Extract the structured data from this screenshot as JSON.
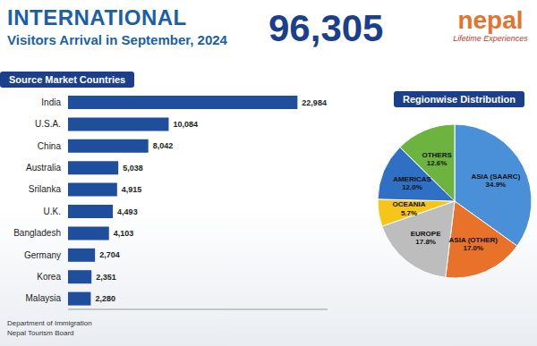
{
  "header": {
    "title": "INTERNATIONAL",
    "subtitle": "Visitors Arrival in September, 2024",
    "total": "96,305",
    "logo": "nepal",
    "tagline": "Lifetime Experiences"
  },
  "source": [
    "Department of Immigration",
    "Nepal Tourism Board"
  ],
  "chart_data": [
    {
      "type": "bar",
      "title": "Source Market Countries",
      "orientation": "horizontal",
      "categories": [
        "India",
        "U.S.A.",
        "China",
        "Australia",
        "Srilanka",
        "U.K.",
        "Bangladesh",
        "Germany",
        "Korea",
        "Malaysia"
      ],
      "values": [
        22984,
        10084,
        8042,
        5038,
        4915,
        4493,
        4103,
        2704,
        2351,
        2280
      ],
      "value_labels": [
        "22,984",
        "10,084",
        "8,042",
        "5,038",
        "4,915",
        "4,493",
        "4,103",
        "2,704",
        "2,351",
        "2,280"
      ],
      "xlim": [
        0,
        26000
      ],
      "tick_labels": "y",
      "data_labels": true,
      "color": "#1f4e9c"
    },
    {
      "type": "pie",
      "title": "Regionwise Distribution",
      "categories": [
        "ASIA (SAARC)",
        "ASIA (OTHER)",
        "EUROPE",
        "OCEANIA",
        "AMERICAS",
        "OTHERS"
      ],
      "values": [
        34.9,
        17.0,
        17.8,
        5.7,
        12.0,
        12.6
      ],
      "value_labels": [
        "34.9%",
        "17.0%",
        "17.8%",
        "5.7%",
        "12.0%",
        "12.6%"
      ],
      "colors": [
        "#4a90d9",
        "#e8722a",
        "#bdbdbd",
        "#f5c518",
        "#2f6fc4",
        "#6db33f"
      ],
      "data_labels": true
    }
  ]
}
